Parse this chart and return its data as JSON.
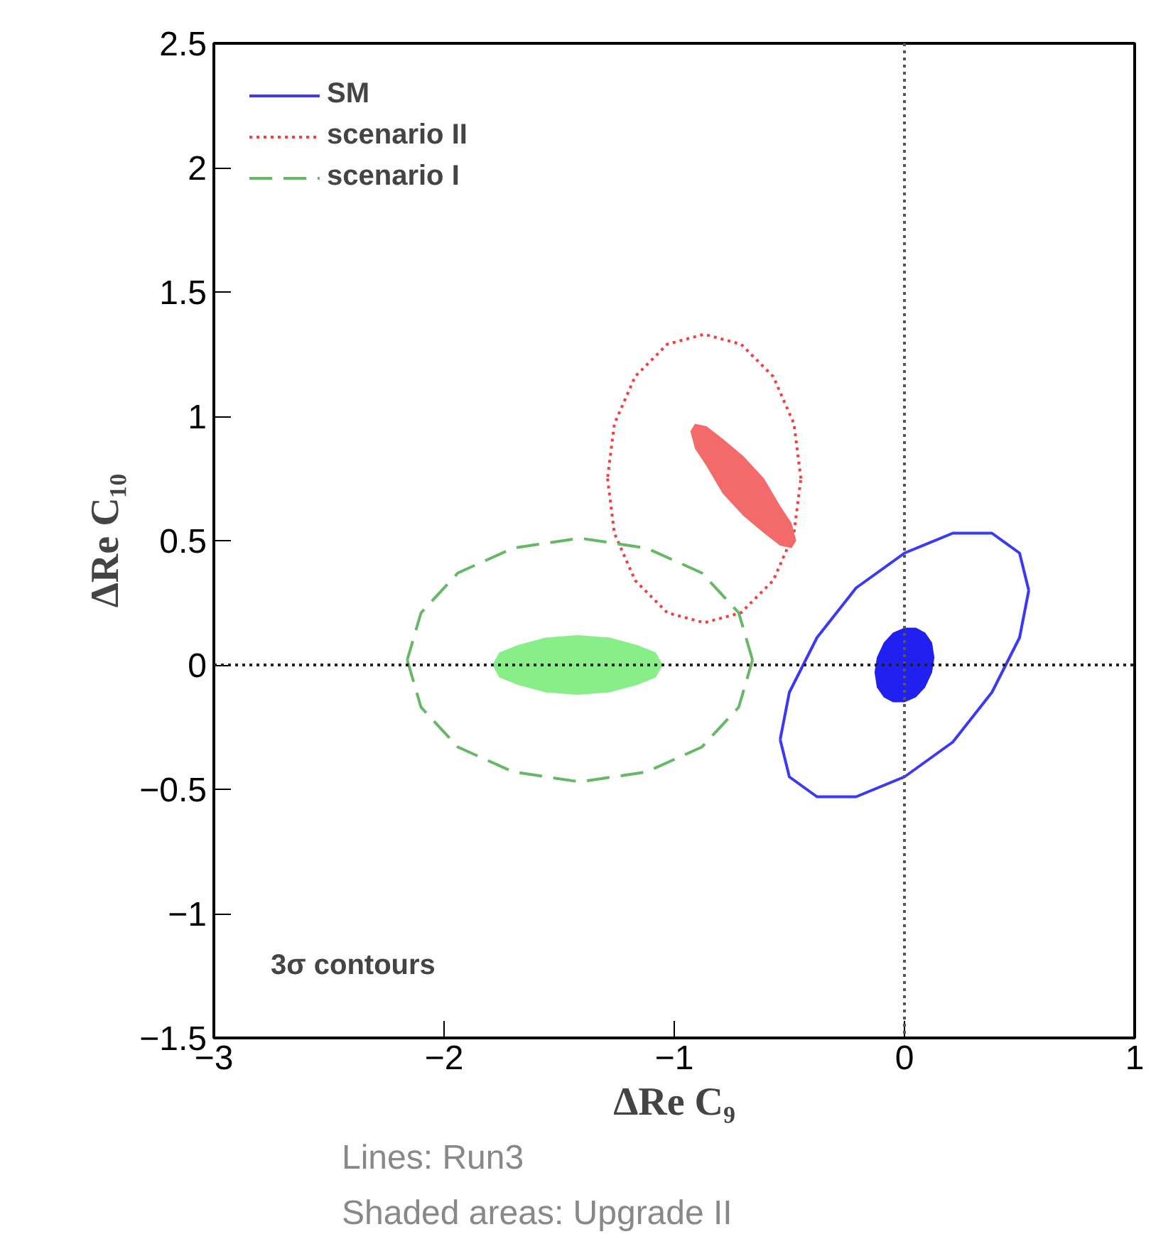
{
  "chart_data": {
    "type": "line",
    "xlabel": "ΔRe C₉",
    "ylabel": "ΔRe C₁₀",
    "xlim": [
      -3,
      1
    ],
    "ylim": [
      -1.5,
      2.5
    ],
    "xticks": [
      -3,
      -2,
      -1,
      0,
      1
    ],
    "yticks": [
      -1.5,
      -1,
      -0.5,
      0,
      0.5,
      1,
      1.5,
      2,
      2.5
    ],
    "grid": false,
    "legend": "top left",
    "annotations": [
      "3σ contours",
      "Lines: Run3",
      "Shaded areas: Upgrade II"
    ],
    "ref_lines": [
      {
        "axis": "x",
        "value": 0,
        "line_style": "dotted",
        "color": "#555555"
      },
      {
        "axis": "y",
        "value": 0,
        "line_style": "dotted",
        "color": "#222222"
      }
    ],
    "series": [
      {
        "name": "SM",
        "line_style": "solid",
        "color": "#3a3af5",
        "x": [
          0.54,
          0.5,
          0.38,
          0.21,
          0,
          -0.21,
          -0.38,
          -0.5,
          -0.54,
          null,
          -0.54,
          -0.5,
          -0.38,
          -0.21,
          0,
          0.21,
          0.38,
          0.5,
          0.54
        ],
        "values": [
          0.3,
          0.45,
          0.53,
          0.53,
          0.45,
          0.31,
          0.11,
          -0.11,
          -0.3,
          null,
          -0.3,
          -0.45,
          -0.53,
          -0.53,
          -0.45,
          -0.31,
          -0.11,
          0.11,
          0.3
        ]
      },
      {
        "name": "scenario II",
        "line_style": "dotted",
        "color": "#f04040",
        "x": [
          -0.45,
          -0.48,
          -0.57,
          -0.71,
          -0.87,
          -1.03,
          -1.17,
          -1.26,
          -1.29,
          null,
          -1.29,
          -1.26,
          -1.17,
          -1.03,
          -0.87,
          -0.71,
          -0.57,
          -0.48,
          -0.45
        ],
        "values": [
          0.75,
          0.97,
          1.16,
          1.29,
          1.33,
          1.29,
          1.16,
          0.97,
          0.75,
          null,
          0.75,
          0.53,
          0.34,
          0.21,
          0.17,
          0.21,
          0.34,
          0.53,
          0.75
        ]
      },
      {
        "name": "scenario I",
        "line_style": "dashed",
        "color": "#66b866",
        "x": [
          -0.66,
          -0.72,
          -0.88,
          -1.12,
          -1.41,
          -1.7,
          -1.94,
          -2.1,
          -2.16,
          null,
          -2.16,
          -2.1,
          -1.94,
          -1.7,
          -1.41,
          -1.12,
          -0.88,
          -0.72,
          -0.66
        ],
        "values": [
          0.02,
          0.21,
          0.37,
          0.47,
          0.51,
          0.47,
          0.37,
          0.21,
          0.02,
          null,
          0.02,
          -0.17,
          -0.33,
          -0.43,
          -0.47,
          -0.43,
          -0.33,
          -0.17,
          0.02
        ]
      },
      {
        "type": "area",
        "color": "#2020f0",
        "x": [
          0.13,
          0.12,
          0.09,
          0.05,
          0,
          -0.05,
          -0.09,
          -0.12,
          -0.13,
          -0.12,
          -0.09,
          -0.05,
          0,
          0.05,
          0.09,
          0.12,
          0.13
        ],
        "values": [
          0.03,
          0.09,
          0.13,
          0.15,
          0.15,
          0.13,
          0.09,
          0.03,
          -0.03,
          -0.09,
          -0.13,
          -0.15,
          -0.15,
          -0.13,
          -0.09,
          -0.03,
          0.03
        ]
      },
      {
        "type": "area",
        "color": "#f26a6a",
        "x": [
          -0.47,
          -0.49,
          -0.54,
          -0.61,
          -0.7,
          -0.79,
          -0.86,
          -0.91,
          -0.93,
          -0.91,
          -0.86,
          -0.79,
          -0.7,
          -0.61,
          -0.54,
          -0.49,
          -0.47
        ],
        "values": [
          0.5,
          0.57,
          0.64,
          0.75,
          0.84,
          0.91,
          0.96,
          0.97,
          0.94,
          0.87,
          0.8,
          0.69,
          0.6,
          0.53,
          0.48,
          0.47,
          0.5
        ]
      },
      {
        "type": "area",
        "color": "#88ee88",
        "x": [
          -1.05,
          -1.08,
          -1.16,
          -1.28,
          -1.42,
          -1.56,
          -1.68,
          -1.76,
          -1.79,
          -1.76,
          -1.68,
          -1.56,
          -1.42,
          -1.28,
          -1.16,
          -1.08,
          -1.05
        ],
        "values": [
          0,
          0.05,
          0.08,
          0.11,
          0.12,
          0.11,
          0.08,
          0.05,
          0,
          -0.05,
          -0.08,
          -0.11,
          -0.12,
          -0.11,
          -0.08,
          -0.05,
          0
        ]
      }
    ]
  }
}
